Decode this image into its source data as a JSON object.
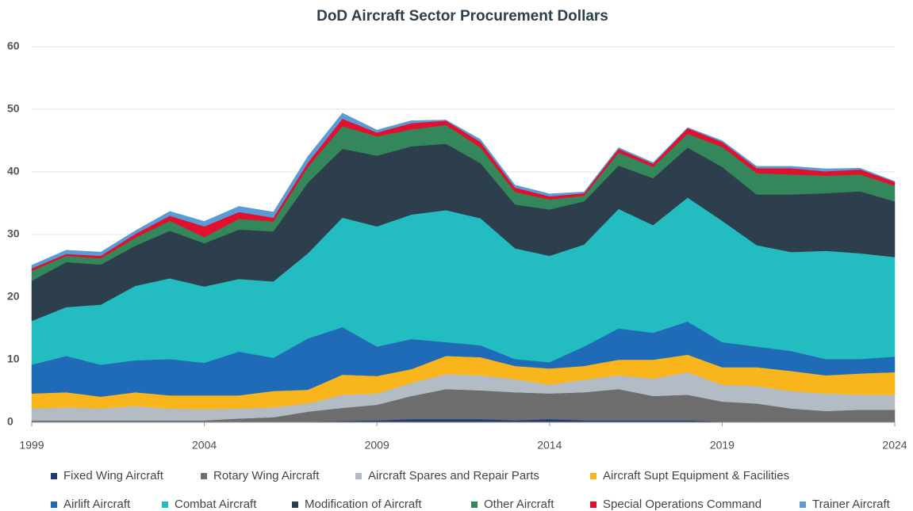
{
  "chart_data": {
    "type": "stacked_area",
    "title": "DoD Aircraft Sector Procurement Dollars",
    "x": [
      1999,
      2000,
      2001,
      2002,
      2003,
      2004,
      2005,
      2006,
      2007,
      2008,
      2009,
      2010,
      2011,
      2012,
      2013,
      2014,
      2015,
      2016,
      2017,
      2018,
      2019,
      2020,
      2021,
      2022,
      2023,
      2024
    ],
    "xlim": [
      1999,
      2024
    ],
    "xticks": [
      1999,
      2004,
      2009,
      2014,
      2019,
      2024
    ],
    "ylim": [
      0,
      60
    ],
    "yticks": [
      0,
      10,
      20,
      30,
      40,
      50,
      60
    ],
    "grid": true,
    "legend": "bottom",
    "series": [
      {
        "name": "Fixed Wing Aircraft",
        "color": "#1f3a7a",
        "values": [
          0.1,
          0.1,
          0.1,
          0.1,
          0.1,
          0.1,
          0.1,
          0.1,
          0.1,
          0.2,
          0.3,
          0.5,
          0.5,
          0.5,
          0.3,
          0.5,
          0.3,
          0.3,
          0.3,
          0.3,
          0.1,
          0.1,
          0.1,
          0.1,
          0.1,
          0.1
        ]
      },
      {
        "name": "Rotary Wing Aircraft",
        "color": "#6d6d6d",
        "values": [
          0.2,
          0.2,
          0.2,
          0.2,
          0.2,
          0.2,
          0.5,
          0.7,
          1.6,
          2.1,
          2.5,
          3.7,
          4.8,
          4.6,
          4.5,
          4.1,
          4.5,
          5.0,
          3.9,
          4.1,
          3.2,
          2.9,
          2.1,
          1.7,
          1.9,
          1.9
        ]
      },
      {
        "name": "Aircraft Spares and Repair Parts",
        "color": "#b3bcc4",
        "values": [
          1.9,
          2.1,
          1.9,
          2.3,
          1.9,
          1.8,
          1.6,
          1.6,
          1.3,
          2.1,
          1.8,
          2.1,
          2.4,
          2.4,
          2.1,
          1.4,
          2.0,
          2.2,
          2.8,
          3.6,
          2.7,
          2.8,
          2.8,
          2.8,
          2.4,
          2.4
        ]
      },
      {
        "name": "Aircraft Supt Equipment & Facilities",
        "color": "#f9b51c",
        "values": [
          2.4,
          2.4,
          1.9,
          2.2,
          2.1,
          2.2,
          2.1,
          2.6,
          2.2,
          3.2,
          2.8,
          2.2,
          2.9,
          2.9,
          2.1,
          2.6,
          2.2,
          2.5,
          3.0,
          2.8,
          2.8,
          3.0,
          3.2,
          2.9,
          3.4,
          3.6
        ]
      },
      {
        "name": "Airlift Aircraft",
        "color": "#1f6bb8",
        "values": [
          4.6,
          5.8,
          5.1,
          5.1,
          5.8,
          5.2,
          7.0,
          5.3,
          8.2,
          7.6,
          4.7,
          4.8,
          2.2,
          1.9,
          1.1,
          1.0,
          3.1,
          5.0,
          4.3,
          5.3,
          4.0,
          3.3,
          3.2,
          2.6,
          2.3,
          2.5
        ]
      },
      {
        "name": "Combat Aircraft",
        "color": "#23bcc0",
        "values": [
          7.0,
          7.8,
          9.6,
          11.9,
          12.9,
          12.2,
          11.6,
          12.2,
          13.6,
          17.5,
          19.2,
          19.9,
          21.1,
          20.3,
          17.7,
          17.0,
          16.3,
          19.1,
          17.2,
          19.8,
          19.4,
          16.2,
          15.8,
          17.3,
          16.9,
          15.9
        ]
      },
      {
        "name": "Modification of Aircraft",
        "color": "#2d3e4c",
        "values": [
          6.4,
          7.2,
          6.4,
          6.4,
          7.6,
          6.9,
          7.9,
          8.0,
          11.3,
          11.0,
          11.3,
          10.9,
          10.6,
          8.8,
          7.0,
          7.4,
          6.9,
          6.9,
          7.5,
          8.0,
          8.6,
          8.1,
          9.2,
          9.2,
          9.9,
          8.9
        ]
      },
      {
        "name": "Other Aircraft",
        "color": "#33875a",
        "values": [
          1.6,
          1.0,
          1.0,
          1.3,
          1.6,
          1.0,
          1.7,
          1.6,
          2.5,
          3.6,
          3.1,
          2.7,
          3.0,
          2.5,
          2.0,
          1.6,
          0.9,
          2.1,
          1.8,
          2.2,
          3.2,
          3.4,
          3.2,
          2.8,
          2.7,
          2.5
        ]
      },
      {
        "name": "Special Operations Command",
        "color": "#e0102e",
        "values": [
          0.4,
          0.3,
          0.4,
          0.6,
          0.8,
          1.7,
          1.1,
          0.6,
          0.7,
          1.2,
          0.6,
          1.0,
          0.7,
          0.9,
          0.7,
          0.5,
          0.4,
          0.6,
          0.5,
          0.9,
          0.8,
          0.8,
          1.0,
          0.7,
          0.8,
          0.6
        ]
      },
      {
        "name": "Trainer Aircraft",
        "color": "#5b9bd5",
        "values": [
          0.5,
          0.6,
          0.6,
          0.5,
          0.7,
          0.8,
          0.9,
          0.9,
          1.0,
          0.9,
          0.4,
          0.4,
          0.1,
          0.4,
          0.4,
          0.4,
          0.2,
          0.2,
          0.2,
          0.1,
          0.2,
          0.3,
          0.3,
          0.4,
          0.2,
          0.1
        ]
      }
    ]
  }
}
